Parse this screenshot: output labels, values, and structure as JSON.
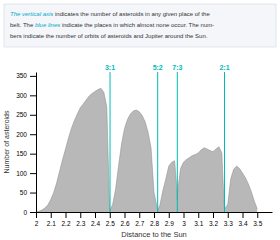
{
  "chart_data": {
    "type": "area",
    "xlabel": "Distance to the Sun",
    "ylabel": "Number of asteroids",
    "xlim": [
      2.0,
      3.6
    ],
    "ylim": [
      0,
      360
    ],
    "xticks": [
      2,
      2.1,
      2.2,
      2.3,
      2.4,
      2.5,
      2.6,
      2.7,
      2.8,
      2.9,
      3,
      3.1,
      3.2,
      3.3,
      3.4,
      3.5
    ],
    "yticks": [
      0,
      50,
      100,
      150,
      200,
      250,
      300,
      350
    ],
    "color": "#b8b8b8",
    "x": [
      2.0,
      2.02,
      2.04,
      2.06,
      2.08,
      2.1,
      2.12,
      2.14,
      2.16,
      2.18,
      2.2,
      2.22,
      2.24,
      2.26,
      2.28,
      2.3,
      2.32,
      2.34,
      2.36,
      2.38,
      2.4,
      2.42,
      2.44,
      2.46,
      2.48,
      2.499,
      2.502,
      2.505,
      2.52,
      2.54,
      2.56,
      2.58,
      2.6,
      2.62,
      2.64,
      2.66,
      2.68,
      2.7,
      2.72,
      2.74,
      2.76,
      2.78,
      2.8,
      2.82,
      2.824,
      2.825,
      2.826,
      2.84,
      2.86,
      2.88,
      2.9,
      2.92,
      2.94,
      2.957,
      2.958,
      2.959,
      2.98,
      3.0,
      3.02,
      3.04,
      3.06,
      3.08,
      3.1,
      3.12,
      3.14,
      3.16,
      3.18,
      3.2,
      3.22,
      3.24,
      3.26,
      3.277,
      3.278,
      3.279,
      3.3,
      3.32,
      3.34,
      3.36,
      3.38,
      3.4,
      3.42,
      3.44,
      3.46,
      3.48,
      3.5
    ],
    "values": [
      0,
      2,
      5,
      10,
      18,
      32,
      50,
      75,
      105,
      135,
      162,
      190,
      215,
      235,
      252,
      268,
      278,
      288,
      298,
      305,
      310,
      315,
      318,
      308,
      270,
      8,
      3,
      8,
      20,
      60,
      120,
      175,
      215,
      238,
      252,
      260,
      262,
      258,
      248,
      232,
      205,
      165,
      50,
      15,
      5,
      3,
      5,
      18,
      55,
      85,
      118,
      128,
      132,
      50,
      30,
      50,
      112,
      128,
      135,
      140,
      145,
      148,
      152,
      160,
      165,
      162,
      158,
      155,
      162,
      168,
      152,
      8,
      5,
      8,
      20,
      85,
      110,
      118,
      112,
      100,
      88,
      72,
      52,
      28,
      8
    ],
    "annotations": [
      {
        "x": 2.502,
        "label": "3:1",
        "color": "#00bbbb"
      },
      {
        "x": 2.825,
        "label": "5:2",
        "color": "#00bbbb"
      },
      {
        "x": 2.958,
        "label": "7:3",
        "color": "#00bbbb"
      },
      {
        "x": 3.278,
        "label": "2:1",
        "color": "#00bbbb"
      },
      {
        "lines": [
          [
            {
              "text": "The vertical axis",
              "color": "#00aacc"
            },
            {
              "text": " indicates the number of asteroids in any given place of the"
            }
          ],
          [
            {
              "text": "belt. The "
            },
            {
              "text": "blue lines",
              "color": "#00aacc"
            },
            {
              "text": " indicate the places in which almost none occur. The num-"
            }
          ],
          [
            {
              "text": "bers indicate the number of orbits of asteroids and Jupiter around the Sun."
            }
          ]
        ]
      }
    ]
  }
}
